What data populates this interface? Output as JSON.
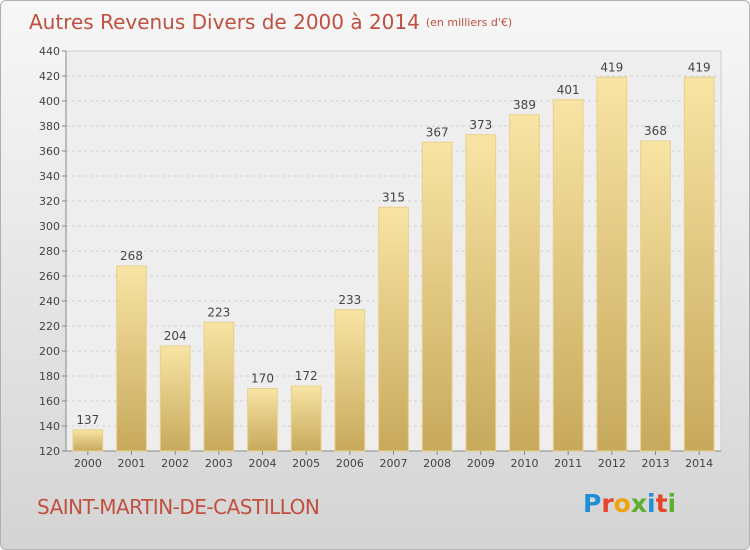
{
  "title": "Autres Revenus Divers de 2000 à 2014",
  "subtitle": "(en milliers d'€)",
  "location": "SAINT-MARTIN-DE-CASTILLON",
  "logo": {
    "letters": [
      "P",
      "r",
      "o",
      "x",
      "i",
      "t",
      "i"
    ],
    "colors": [
      "#1f8fd6",
      "#e5452b",
      "#f2a20b",
      "#5fae2e",
      "#1f8fd6",
      "#e5452b",
      "#5fae2e"
    ]
  },
  "colors": {
    "bar_light": "#f8e4a4",
    "bar_dark": "#c7a95c",
    "text_accent": "#c0503f"
  },
  "chart_data": {
    "type": "bar",
    "categories": [
      "2000",
      "2001",
      "2002",
      "2003",
      "2004",
      "2005",
      "2006",
      "2007",
      "2008",
      "2009",
      "2010",
      "2011",
      "2012",
      "2013",
      "2014"
    ],
    "values": [
      137,
      268,
      204,
      223,
      170,
      172,
      233,
      315,
      367,
      373,
      389,
      401,
      419,
      368,
      419
    ],
    "ylim": [
      120,
      440
    ],
    "yticks": [
      120,
      140,
      160,
      180,
      200,
      220,
      240,
      260,
      280,
      300,
      320,
      340,
      360,
      380,
      400,
      420,
      440
    ],
    "grid": true
  }
}
